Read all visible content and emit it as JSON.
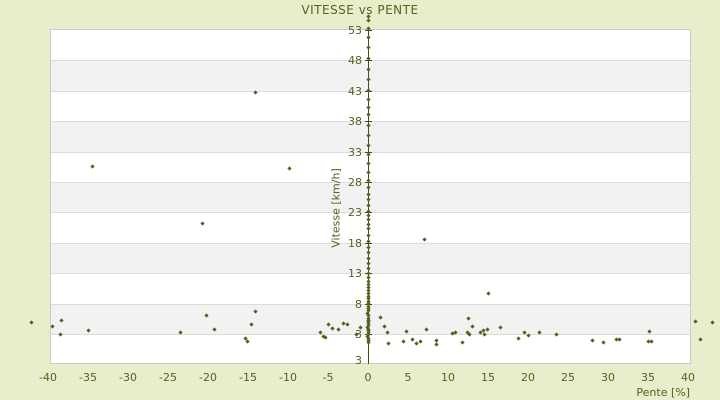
{
  "colors": {
    "background": "#e8edcb",
    "plot_background": "#ffffff",
    "band_gray": "#f2f2f2",
    "gridline": "#dcdcdc",
    "plot_border": "#cbcbcb",
    "axis_line": "#4a4b14",
    "marker": "#5b5c1d",
    "text": "#5c5d1f"
  },
  "y_axis_end_label": "3",
  "chart_data": {
    "type": "scatter",
    "title": "VITESSE vs PENTE",
    "xlabel": "Pente [%]",
    "ylabel": "Vitesse [km/h]",
    "x_ticks": [
      -40,
      -35,
      -30,
      -25,
      -20,
      -15,
      -10,
      -5,
      0,
      5,
      10,
      15,
      20,
      25,
      30,
      35,
      40
    ],
    "y_ticks": [
      53,
      48,
      43,
      38,
      33,
      28,
      23,
      18,
      13,
      8,
      3
    ],
    "xlim": [
      -39.8,
      40.4
    ],
    "ylim": [
      -1.9,
      53.2
    ],
    "grid": "horizontal-bands",
    "legend": "none",
    "marker": "small-diamond",
    "points": [
      [
        -42.1,
        4.9
      ],
      [
        -39.4,
        4.2
      ],
      [
        -38.4,
        2.9
      ],
      [
        -38.3,
        5.2
      ],
      [
        -34.9,
        3.6
      ],
      [
        -34.5,
        30.6
      ],
      [
        -23.5,
        3.2
      ],
      [
        -20.7,
        21.2
      ],
      [
        -20.2,
        6.1
      ],
      [
        -19.2,
        3.8
      ],
      [
        -15.3,
        2.3
      ],
      [
        -15.1,
        1.8
      ],
      [
        -14.6,
        4.5
      ],
      [
        -14.1,
        6.7
      ],
      [
        -14.1,
        42.8
      ],
      [
        -9.8,
        30.3
      ],
      [
        -6.0,
        3.2
      ],
      [
        -5.6,
        2.6
      ],
      [
        -5.3,
        2.4
      ],
      [
        -4.9,
        4.6
      ],
      [
        -4.4,
        3.9
      ],
      [
        -3.7,
        3.7
      ],
      [
        -3.1,
        4.7
      ],
      [
        -2.6,
        4.5
      ],
      [
        -1.5,
        3.0
      ],
      [
        -0.9,
        4.1
      ],
      [
        0,
        1.6
      ],
      [
        0,
        2.0
      ],
      [
        0,
        2.3
      ],
      [
        -0.1,
        2.6
      ],
      [
        0,
        2.9
      ],
      [
        0.1,
        3.2
      ],
      [
        0,
        3.5
      ],
      [
        0,
        3.8
      ],
      [
        -0.1,
        4.1
      ],
      [
        0,
        4.4
      ],
      [
        0,
        4.7
      ],
      [
        0.1,
        5.0
      ],
      [
        0,
        5.3
      ],
      [
        0,
        5.6
      ],
      [
        0,
        6.0
      ],
      [
        -0.1,
        6.4
      ],
      [
        0,
        6.8
      ],
      [
        0,
        7.2
      ],
      [
        0.1,
        7.6
      ],
      [
        0,
        8.0
      ],
      [
        0,
        8.4
      ],
      [
        0,
        8.8
      ],
      [
        0,
        9.2
      ],
      [
        0,
        9.6
      ],
      [
        0,
        10.1
      ],
      [
        0,
        10.6
      ],
      [
        0,
        11.1
      ],
      [
        0,
        11.7
      ],
      [
        0,
        12.3
      ],
      [
        0,
        13.0
      ],
      [
        0,
        13.8
      ],
      [
        0,
        14.6
      ],
      [
        0,
        15.5
      ],
      [
        0,
        16.4
      ],
      [
        0,
        17.3
      ],
      [
        0,
        18.2
      ],
      [
        0,
        19.2
      ],
      [
        0,
        20.3
      ],
      [
        0,
        21.0
      ],
      [
        0,
        21.8
      ],
      [
        0,
        22.5
      ],
      [
        0,
        23.2
      ],
      [
        0,
        24.1
      ],
      [
        0,
        25.2
      ],
      [
        0,
        26.0
      ],
      [
        0,
        27.1
      ],
      [
        0,
        28.3
      ],
      [
        0,
        29.6
      ],
      [
        0,
        31.0
      ],
      [
        0,
        32.5
      ],
      [
        0,
        34.0
      ],
      [
        0,
        35.6
      ],
      [
        0,
        37.3
      ],
      [
        0,
        39.1
      ],
      [
        0,
        40.2
      ],
      [
        0,
        41.5
      ],
      [
        0,
        43.0
      ],
      [
        0,
        44.8
      ],
      [
        0,
        46.5
      ],
      [
        0,
        48.3
      ],
      [
        0,
        50.2
      ],
      [
        0,
        51.8
      ],
      [
        0,
        53.2
      ],
      [
        0,
        54.6
      ],
      [
        0,
        55.2
      ],
      [
        1.5,
        5.7
      ],
      [
        2.1,
        4.2
      ],
      [
        2.4,
        3.2
      ],
      [
        2.5,
        1.4
      ],
      [
        4.4,
        1.7
      ],
      [
        4.8,
        3.4
      ],
      [
        5.5,
        2.1
      ],
      [
        6.0,
        1.5
      ],
      [
        6.5,
        1.7
      ],
      [
        7.0,
        18.6
      ],
      [
        7.3,
        3.7
      ],
      [
        8.5,
        1.9
      ],
      [
        8.6,
        1.3
      ],
      [
        10.5,
        3.1
      ],
      [
        10.9,
        3.3
      ],
      [
        11.8,
        1.6
      ],
      [
        12.4,
        3.2
      ],
      [
        12.6,
        5.6
      ],
      [
        12.7,
        2.9
      ],
      [
        13.0,
        4.3
      ],
      [
        14.1,
        3.3
      ],
      [
        14.4,
        3.5
      ],
      [
        14.6,
        2.9
      ],
      [
        14.9,
        3.7
      ],
      [
        15.0,
        9.7
      ],
      [
        16.5,
        4.0
      ],
      [
        18.8,
        2.2
      ],
      [
        19.5,
        3.2
      ],
      [
        20.0,
        2.7
      ],
      [
        21.4,
        3.2
      ],
      [
        23.5,
        2.9
      ],
      [
        28.0,
        1.9
      ],
      [
        29.4,
        1.6
      ],
      [
        31.1,
        2.1
      ],
      [
        31.4,
        2.1
      ],
      [
        35.0,
        1.8
      ],
      [
        35.2,
        3.4
      ],
      [
        35.4,
        1.8
      ],
      [
        40.9,
        5.1
      ],
      [
        41.5,
        2.1
      ],
      [
        43.1,
        4.9
      ]
    ]
  }
}
